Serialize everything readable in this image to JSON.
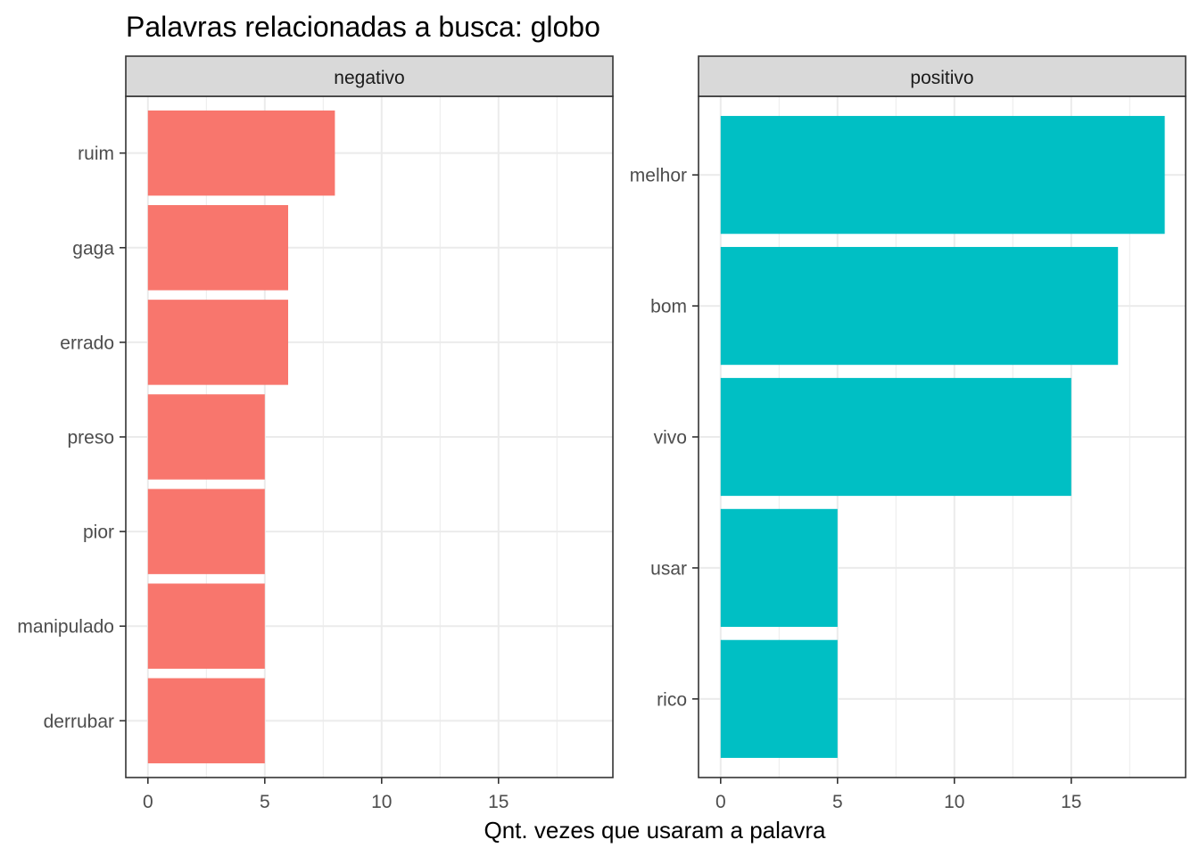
{
  "chart_data": {
    "type": "bar",
    "orientation": "horizontal",
    "title": "Palavras relacionadas a busca: globo",
    "xlabel": "Qnt. vezes que usaram a palavra",
    "ylabel": "",
    "x_ticks": [
      "0",
      "5",
      "10",
      "15"
    ],
    "panels": [
      {
        "label": "negativo",
        "color": "#F8766D",
        "xlim": [
          0,
          19
        ],
        "categories": [
          "ruim",
          "gaga",
          "errado",
          "preso",
          "pior",
          "manipulado",
          "derrubar"
        ],
        "values": [
          8,
          6,
          6,
          5,
          5,
          5,
          5
        ]
      },
      {
        "label": "positivo",
        "color": "#00BFC4",
        "xlim": [
          0,
          19
        ],
        "categories": [
          "melhor",
          "bom",
          "vivo",
          "usar",
          "rico"
        ],
        "values": [
          19,
          17,
          15,
          5,
          5
        ]
      }
    ],
    "grid": true,
    "legend": "none"
  }
}
